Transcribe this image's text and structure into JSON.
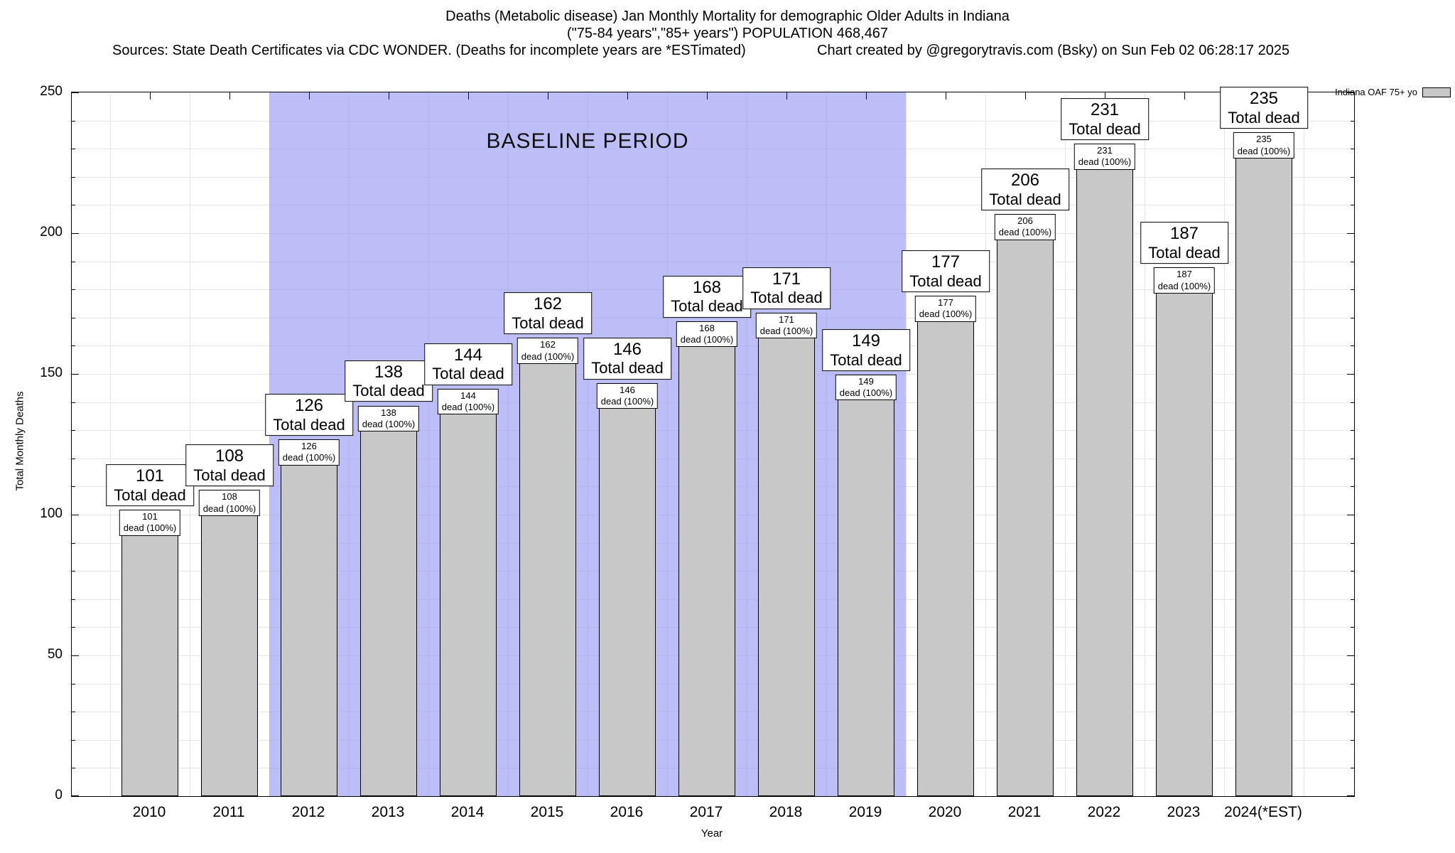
{
  "header": {
    "line1": "Deaths (Metabolic disease) Jan Monthly Mortality for demographic Older Adults in Indiana",
    "line2": "(\"75-84 years\",\"85+ years\") POPULATION 468,467",
    "sources": "Sources: State Death Certificates via CDC WONDER. (Deaths for incomplete years are *ESTimated)",
    "credit": "Chart created by @gregorytravis.com (Bsky) on Sun Feb 02 06:28:17 2025"
  },
  "legend": {
    "label": "Indiana OAF 75+ yo"
  },
  "chart_data": {
    "type": "bar",
    "title": "Deaths (Metabolic disease) Jan Monthly Mortality for demographic Older Adults in Indiana",
    "subtitle": "(\"75-84 years\",\"85+ years\") POPULATION 468,467",
    "categories": [
      "2010",
      "2011",
      "2012",
      "2013",
      "2014",
      "2015",
      "2016",
      "2017",
      "2018",
      "2019",
      "2020",
      "2021",
      "2022",
      "2023",
      "2024(*EST)"
    ],
    "values": [
      101,
      108,
      126,
      138,
      144,
      162,
      146,
      168,
      171,
      149,
      177,
      206,
      231,
      187,
      235
    ],
    "xlabel": "Year",
    "ylabel": "Total Monthly Deaths",
    "ylim": [
      0,
      250
    ],
    "yticks": [
      0,
      50,
      100,
      150,
      200,
      250
    ],
    "grid": true,
    "bar_color": "#c8c8c8",
    "bar_label_top_suffix": "Total dead",
    "bar_label_inner_suffix": "dead (100%)",
    "baseline_band": {
      "from_category": "2012",
      "to_category": "2019",
      "label": "BASELINE PERIOD",
      "color": "#9191f2"
    },
    "legend_entries": [
      "Indiana OAF 75+ yo"
    ],
    "legend_position": "top-right"
  }
}
